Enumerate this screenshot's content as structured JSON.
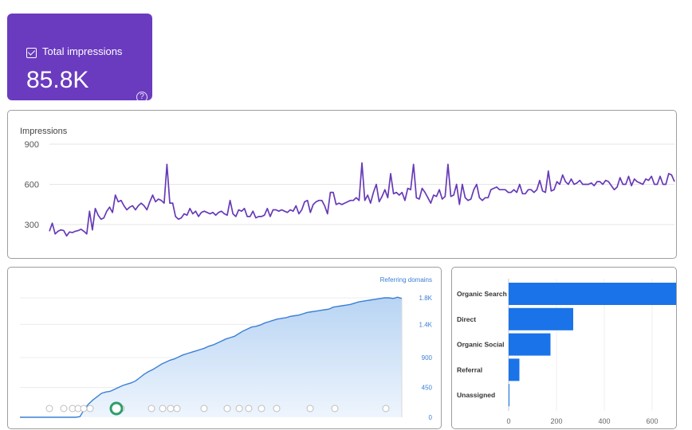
{
  "kpi": {
    "label": "Total impressions",
    "value": "85.8K",
    "help_icon": "help-circle-icon"
  },
  "charts": [
    {
      "type": "line",
      "title": "Impressions",
      "color": "#673ab7",
      "y_ticks": [
        "900",
        "600",
        "300"
      ],
      "ylim": [
        0,
        900
      ],
      "values": [
        250,
        310,
        230,
        250,
        260,
        255,
        215,
        245,
        240,
        250,
        255,
        265,
        250,
        230,
        400,
        260,
        420,
        370,
        340,
        350,
        400,
        430,
        390,
        520,
        470,
        480,
        440,
        410,
        430,
        440,
        410,
        440,
        460,
        440,
        410,
        470,
        520,
        470,
        490,
        480,
        460,
        750,
        460,
        460,
        360,
        340,
        350,
        380,
        370,
        420,
        380,
        400,
        360,
        390,
        400,
        390,
        380,
        390,
        370,
        390,
        400,
        380,
        370,
        480,
        380,
        360,
        410,
        400,
        420,
        360,
        360,
        400,
        350,
        360,
        360,
        370,
        420,
        360,
        410,
        410,
        400,
        410,
        400,
        390,
        410,
        400,
        440,
        380,
        410,
        470,
        480,
        390,
        450,
        470,
        480,
        480,
        440,
        380,
        540,
        540,
        450,
        460,
        450,
        460,
        470,
        480,
        480,
        500,
        480,
        760,
        480,
        520,
        460,
        540,
        600,
        470,
        510,
        560,
        500,
        680,
        530,
        540,
        520,
        540,
        480,
        570,
        560,
        750,
        500,
        490,
        570,
        540,
        500,
        460,
        520,
        510,
        560,
        490,
        510,
        750,
        510,
        520,
        600,
        450,
        600,
        500,
        480,
        490,
        560,
        600,
        500,
        480,
        500,
        500,
        560,
        570,
        580,
        560,
        560,
        560,
        540,
        540,
        560,
        540,
        600,
        530,
        530,
        560,
        560,
        540,
        560,
        630,
        550,
        540,
        700,
        550,
        560,
        620,
        600,
        670,
        620,
        600,
        640,
        600,
        610,
        630,
        600,
        600,
        600,
        610,
        590,
        620,
        620,
        600,
        630,
        620,
        590,
        560,
        580,
        650,
        600,
        600,
        660,
        590,
        640,
        620,
        610,
        600,
        640,
        630,
        660,
        600,
        600,
        660,
        600,
        600,
        680,
        670,
        620
      ]
    },
    {
      "type": "area",
      "legend": "Referring domains",
      "color": "#3a7fd5",
      "y_ticks": [
        "1.8K",
        "1.4K",
        "900",
        "450",
        "0"
      ],
      "ylim": [
        0,
        1800
      ],
      "values": [
        0,
        0,
        0,
        0,
        0,
        0,
        0,
        0,
        0,
        0,
        0,
        0,
        0,
        0,
        10,
        120,
        200,
        260,
        310,
        360,
        380,
        390,
        420,
        450,
        480,
        500,
        520,
        550,
        600,
        650,
        690,
        720,
        760,
        800,
        830,
        860,
        880,
        910,
        940,
        960,
        980,
        1000,
        1020,
        1040,
        1070,
        1090,
        1120,
        1150,
        1180,
        1200,
        1220,
        1260,
        1300,
        1330,
        1360,
        1370,
        1390,
        1420,
        1440,
        1460,
        1480,
        1490,
        1500,
        1520,
        1530,
        1540,
        1560,
        1580,
        1590,
        1600,
        1610,
        1620,
        1630,
        1660,
        1670,
        1680,
        1690,
        1700,
        1720,
        1740,
        1750,
        1760,
        1770,
        1780,
        1790,
        1800,
        1800,
        1790,
        1810,
        1790
      ]
    },
    {
      "type": "bar",
      "orientation": "horizontal",
      "color": "#1a73e8",
      "categories": [
        "Organic Search",
        "Direct",
        "Organic Social",
        "Referral",
        "Unassigned"
      ],
      "values": [
        760,
        270,
        175,
        45,
        3
      ],
      "x_ticks": [
        "0",
        "200",
        "400",
        "600",
        "800"
      ],
      "xlim": [
        0,
        840
      ]
    }
  ]
}
